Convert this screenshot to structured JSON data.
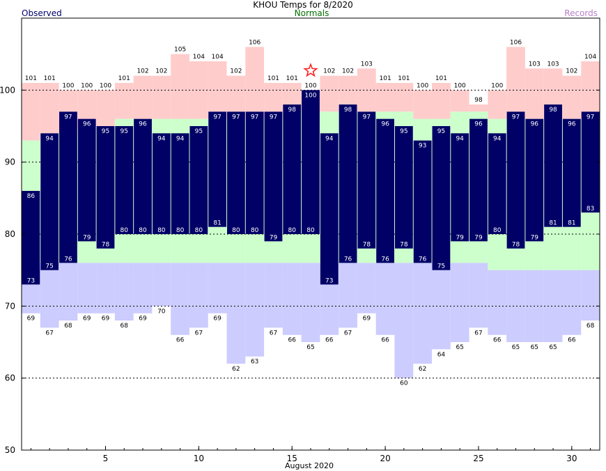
{
  "chart_data": {
    "type": "bar",
    "title": "KHOU Temps for 8/2020",
    "xlabel": "August 2020",
    "ylabel": "",
    "ylim": [
      50,
      110
    ],
    "xlim": [
      0.5,
      31.5
    ],
    "yticks": [
      50,
      60,
      70,
      80,
      90,
      100
    ],
    "xticks": [
      5,
      10,
      15,
      20,
      25,
      30
    ],
    "grid": "dashed horizontal at 60, 70, 80, 90, 100",
    "legend": [
      "Observed",
      "Normals",
      "Records"
    ],
    "legend_position": "top",
    "days": [
      1,
      2,
      3,
      4,
      5,
      6,
      7,
      8,
      9,
      10,
      11,
      12,
      13,
      14,
      15,
      16,
      17,
      18,
      19,
      20,
      21,
      22,
      23,
      24,
      25,
      26,
      27,
      28,
      29,
      30,
      31
    ],
    "series": [
      {
        "name": "Observed",
        "role": "observed_high",
        "values": [
          86,
          94,
          97,
          96,
          95,
          95,
          96,
          94,
          94,
          95,
          97,
          97,
          97,
          97,
          98,
          100,
          94,
          98,
          97,
          96,
          95,
          93,
          95,
          94,
          96,
          94,
          97,
          96,
          98,
          96,
          97
        ]
      },
      {
        "name": "Observed",
        "role": "observed_low",
        "values": [
          73,
          75,
          76,
          79,
          78,
          80,
          80,
          80,
          80,
          80,
          81,
          80,
          80,
          79,
          80,
          80,
          73,
          76,
          78,
          76,
          78,
          76,
          75,
          79,
          79,
          80,
          78,
          79,
          81,
          81,
          83
        ]
      },
      {
        "name": "Records",
        "role": "record_high",
        "values": [
          101,
          101,
          100,
          100,
          100,
          101,
          102,
          102,
          105,
          104,
          104,
          102,
          106,
          101,
          101,
          100,
          102,
          102,
          103,
          101,
          101,
          100,
          101,
          100,
          98,
          100,
          106,
          103,
          103,
          102,
          104
        ]
      },
      {
        "name": "Records",
        "role": "record_low",
        "values": [
          69,
          67,
          68,
          69,
          69,
          68,
          69,
          70,
          66,
          67,
          69,
          62,
          63,
          67,
          66,
          65,
          66,
          67,
          69,
          66,
          60,
          62,
          64,
          65,
          67,
          66,
          65,
          65,
          65,
          66,
          68
        ]
      },
      {
        "name": "Normals",
        "role": "normal_high",
        "values": [
          93,
          94,
          94,
          95,
          95,
          96,
          96,
          96,
          96,
          96,
          96,
          96,
          96,
          96,
          97,
          97,
          97,
          97,
          97,
          97,
          97,
          96,
          96,
          97,
          97,
          96,
          96,
          96,
          96,
          96,
          96
        ]
      },
      {
        "name": "Normals",
        "role": "normal_low",
        "values": [
          76,
          76,
          76,
          76,
          76,
          76,
          76,
          76,
          76,
          76,
          76,
          76,
          76,
          76,
          76,
          76,
          76,
          76,
          76,
          76,
          76,
          76,
          76,
          76,
          76,
          75,
          75,
          75,
          75,
          75,
          75
        ]
      }
    ],
    "annotations": [
      {
        "type": "star",
        "day": 16,
        "value": 102.7,
        "meaning": "record tied"
      }
    ]
  },
  "colors": {
    "observed": "#000066",
    "observed_label": "#00006b",
    "normal_band": "#ccffcc",
    "normals_label": "#007000",
    "record_high": "#ffcccc",
    "record_low": "#ccccff",
    "records_label": "#b77fc8",
    "star": "#ff2222",
    "grid": "#000000"
  }
}
